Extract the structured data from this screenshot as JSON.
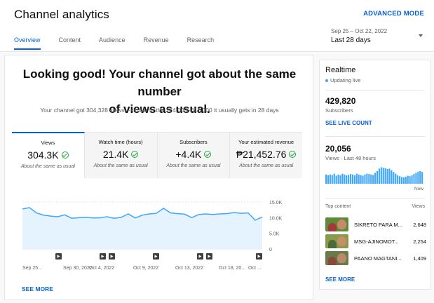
{
  "header": {
    "title": "Channel analytics",
    "advanced_mode": "ADVANCED MODE",
    "tabs": [
      {
        "label": "Overview",
        "active": true
      },
      {
        "label": "Content",
        "active": false
      },
      {
        "label": "Audience",
        "active": false
      },
      {
        "label": "Revenue",
        "active": false
      },
      {
        "label": "Research",
        "active": false
      }
    ],
    "date_range": "Sep 25 – Oct 22, 2022",
    "date_label": "Last 28 days"
  },
  "main": {
    "headline_line1": "Looking good! Your channel got about the same number",
    "headline_line2": "of views as usual.",
    "subtext": "Your channel got 304,328 views—similar to the 274,000–416,000 it usually gets in 28 days",
    "metrics": [
      {
        "label": "Views",
        "value": "304.3K",
        "note": "About the same as usual",
        "active": true
      },
      {
        "label": "Watch time (hours)",
        "value": "21.4K",
        "note": "About the same as usual",
        "active": false
      },
      {
        "label": "Subscribers",
        "value": "+4.4K",
        "note": "About the same as usual",
        "active": false
      },
      {
        "label": "Your estimated revenue",
        "value": "₱21,452.76",
        "note": "About the same as usual",
        "active": false
      }
    ],
    "see_more": "SEE MORE"
  },
  "chart_data": {
    "type": "area",
    "title": "",
    "xlabel": "",
    "ylabel": "",
    "x_tick_labels": [
      "Sep 25...",
      "Sep 30, 2022",
      "Oct 4, 2022",
      "Oct 9, 2022",
      "Oct 13, 2022",
      "Oct 18, 20...",
      "Oct ..."
    ],
    "y_tick_labels": [
      "15.0K",
      "10.0K",
      "5.0K",
      "0"
    ],
    "ylim": [
      0,
      15000
    ],
    "series": [
      {
        "values": [
          12800,
          13200,
          11500,
          10800,
          10500,
          10300,
          10900,
          9800,
          10000,
          10100,
          9900,
          9950,
          10300,
          9800,
          10100,
          11200,
          9900,
          10800,
          11200,
          11400,
          13000,
          11500,
          11300,
          11100,
          10000,
          11000,
          11200,
          11000,
          11200,
          11300,
          11600,
          11400,
          11500,
          9200,
          10200
        ],
        "color": "#3ea6ff"
      }
    ],
    "video_markers": 7,
    "grid": true
  },
  "realtime": {
    "title": "Realtime",
    "updating": "Updating live",
    "subscribers_value": "429,820",
    "subscribers_label": "Subscribers",
    "see_live": "SEE LIVE COUNT",
    "views_value": "20,056",
    "views_label": "Views · Last 48 hours",
    "bars": [
      0.55,
      0.5,
      0.55,
      0.52,
      0.6,
      0.48,
      0.55,
      0.5,
      0.6,
      0.55,
      0.5,
      0.52,
      0.58,
      0.55,
      0.5,
      0.6,
      0.55,
      0.52,
      0.48,
      0.55,
      0.6,
      0.58,
      0.55,
      0.52,
      0.65,
      0.75,
      0.9,
      0.98,
      0.95,
      0.92,
      0.88,
      0.9,
      0.8,
      0.7,
      0.6,
      0.5,
      0.45,
      0.4,
      0.38,
      0.42,
      0.48,
      0.45,
      0.5,
      0.58,
      0.65,
      0.72,
      0.75,
      0.7
    ],
    "now_label": "Now",
    "top_content_label": "Top content",
    "views_col_label": "Views",
    "top_content": [
      {
        "title": "SIKRETO PARA M...",
        "views": "2,648"
      },
      {
        "title": "MSG-AJINOMOT...",
        "views": "2,254"
      },
      {
        "title": "PAANO MAGTANI...",
        "views": "1,409"
      }
    ],
    "see_more": "SEE MORE"
  },
  "colors": {
    "accent": "#065fd4",
    "chart_line": "#3ea6ff",
    "chart_fill": "#e4f3fd",
    "success": "#2ba640"
  }
}
